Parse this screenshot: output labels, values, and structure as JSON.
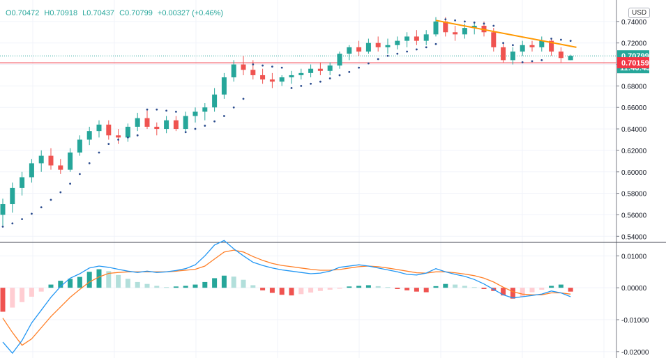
{
  "legend": {
    "open": "O0.70472",
    "high": "H0.70918",
    "low": "L0.70437",
    "close": "C0.70799",
    "change": "+0.00327 (+0.46%)"
  },
  "currency": "USD",
  "price_labels": {
    "last": "0.70799",
    "countdown": "11:46:43",
    "line": "0.70159"
  },
  "colors": {
    "up": "#26a69a",
    "down": "#ef5350",
    "sar": "#2a4b8d",
    "trend": "#ff9800",
    "macd": "#2196f3",
    "signal": "#ff7f27",
    "hline": "#f23645",
    "hist_up_strong": "#26a69a",
    "hist_up_weak": "#b2dfdb",
    "hist_dn_strong": "#ef5350",
    "hist_dn_weak": "#ffcdd2"
  },
  "chart_data": [
    {
      "type": "candlestick",
      "series_desc": "price with parabolic SAR",
      "y_ticks": [
        "0.54000",
        "0.56000",
        "0.58000",
        "0.60000",
        "0.62000",
        "0.64000",
        "0.66000",
        "0.68000",
        "0.70000",
        "0.72000",
        "0.74000"
      ],
      "ylim": [
        0.535,
        0.76
      ],
      "candles": [
        [
          0.56,
          0.575,
          0.55,
          0.57
        ],
        [
          0.57,
          0.59,
          0.562,
          0.585
        ],
        [
          0.585,
          0.6,
          0.578,
          0.595
        ],
        [
          0.595,
          0.612,
          0.59,
          0.608
        ],
        [
          0.608,
          0.62,
          0.6,
          0.615
        ],
        [
          0.615,
          0.622,
          0.602,
          0.606
        ],
        [
          0.606,
          0.612,
          0.598,
          0.602
        ],
        [
          0.602,
          0.622,
          0.6,
          0.618
        ],
        [
          0.618,
          0.634,
          0.615,
          0.63
        ],
        [
          0.63,
          0.642,
          0.625,
          0.638
        ],
        [
          0.638,
          0.648,
          0.632,
          0.644
        ],
        [
          0.644,
          0.648,
          0.63,
          0.634
        ],
        [
          0.634,
          0.64,
          0.626,
          0.632
        ],
        [
          0.632,
          0.645,
          0.628,
          0.642
        ],
        [
          0.642,
          0.655,
          0.638,
          0.65
        ],
        [
          0.65,
          0.658,
          0.64,
          0.642
        ],
        [
          0.642,
          0.646,
          0.634,
          0.64
        ],
        [
          0.64,
          0.652,
          0.636,
          0.648
        ],
        [
          0.648,
          0.652,
          0.638,
          0.64
        ],
        [
          0.64,
          0.656,
          0.638,
          0.652
        ],
        [
          0.652,
          0.66,
          0.646,
          0.656
        ],
        [
          0.656,
          0.664,
          0.648,
          0.66
        ],
        [
          0.66,
          0.678,
          0.656,
          0.672
        ],
        [
          0.672,
          0.692,
          0.668,
          0.688
        ],
        [
          0.688,
          0.704,
          0.684,
          0.7
        ],
        [
          0.7,
          0.708,
          0.69,
          0.695
        ],
        [
          0.695,
          0.704,
          0.686,
          0.69
        ],
        [
          0.69,
          0.696,
          0.682,
          0.686
        ],
        [
          0.686,
          0.692,
          0.678,
          0.684
        ],
        [
          0.684,
          0.69,
          0.68,
          0.688
        ],
        [
          0.688,
          0.694,
          0.682,
          0.69
        ],
        [
          0.69,
          0.696,
          0.686,
          0.692
        ],
        [
          0.692,
          0.7,
          0.688,
          0.696
        ],
        [
          0.696,
          0.702,
          0.69,
          0.694
        ],
        [
          0.694,
          0.702,
          0.69,
          0.699
        ],
        [
          0.699,
          0.712,
          0.696,
          0.71
        ],
        [
          0.71,
          0.718,
          0.704,
          0.716
        ],
        [
          0.716,
          0.722,
          0.708,
          0.712
        ],
        [
          0.712,
          0.724,
          0.71,
          0.72
        ],
        [
          0.72,
          0.726,
          0.712,
          0.716
        ],
        [
          0.716,
          0.724,
          0.71,
          0.718
        ],
        [
          0.718,
          0.726,
          0.714,
          0.722
        ],
        [
          0.722,
          0.73,
          0.716,
          0.726
        ],
        [
          0.726,
          0.732,
          0.718,
          0.722
        ],
        [
          0.722,
          0.732,
          0.718,
          0.728
        ],
        [
          0.728,
          0.744,
          0.726,
          0.74
        ],
        [
          0.74,
          0.744,
          0.726,
          0.73
        ],
        [
          0.73,
          0.736,
          0.722,
          0.728
        ],
        [
          0.728,
          0.738,
          0.724,
          0.734
        ],
        [
          0.734,
          0.74,
          0.728,
          0.736
        ],
        [
          0.736,
          0.74,
          0.726,
          0.73
        ],
        [
          0.73,
          0.734,
          0.712,
          0.716
        ],
        [
          0.716,
          0.72,
          0.702,
          0.704
        ],
        [
          0.704,
          0.716,
          0.7,
          0.712
        ],
        [
          0.712,
          0.722,
          0.708,
          0.718
        ],
        [
          0.718,
          0.722,
          0.712,
          0.716
        ],
        [
          0.716,
          0.726,
          0.712,
          0.722
        ],
        [
          0.722,
          0.724,
          0.708,
          0.712
        ],
        [
          0.712,
          0.716,
          0.702,
          0.706
        ],
        [
          0.704,
          0.709,
          0.704,
          0.708
        ]
      ],
      "sar": [
        0.549,
        0.552,
        0.556,
        0.561,
        0.567,
        0.574,
        0.581,
        0.589,
        0.598,
        0.608,
        0.618,
        0.626,
        0.63,
        0.632,
        0.634,
        0.658,
        0.658,
        0.657,
        0.656,
        0.637,
        0.64,
        0.643,
        0.647,
        0.652,
        0.66,
        0.668,
        0.7,
        0.699,
        0.698,
        0.697,
        0.678,
        0.68,
        0.682,
        0.684,
        0.687,
        0.69,
        0.693,
        0.697,
        0.701,
        0.705,
        0.708,
        0.71,
        0.712,
        0.714,
        0.716,
        0.719,
        0.742,
        0.741,
        0.74,
        0.739,
        0.738,
        0.736,
        0.72,
        0.718,
        0.702,
        0.703,
        0.704,
        0.724,
        0.723,
        0.722
      ],
      "trendline": {
        "from": [
          45,
          0.741
        ],
        "to": [
          59.6,
          0.716
        ]
      },
      "hline": 0.70159
    },
    {
      "type": "macd",
      "y_ticks": [
        "-0.02000",
        "-0.01000",
        "0.00000",
        "0.01000"
      ],
      "ylim": [
        -0.022,
        0.014
      ],
      "histogram": [
        -0.0075,
        -0.0062,
        -0.0045,
        -0.0028,
        -0.0012,
        0.001,
        0.0022,
        0.0028,
        0.0034,
        0.005,
        0.0058,
        0.0052,
        0.004,
        0.0028,
        0.0018,
        0.0012,
        0.0006,
        0.0002,
        0.0004,
        0.0006,
        0.001,
        0.0018,
        0.003,
        0.0038,
        0.0035,
        0.0025,
        0.0008,
        -0.0008,
        -0.0016,
        -0.0022,
        -0.0024,
        -0.002,
        -0.0015,
        -0.001,
        -0.0006,
        -0.0003,
        0.0004,
        0.0006,
        0.0008,
        0.0005,
        0.0002,
        -0.0004,
        -0.0008,
        -0.0012,
        -0.0014,
        0.0005,
        0.0012,
        0.001,
        0.0006,
        0.0002,
        -0.0004,
        -0.001,
        -0.0024,
        -0.0034,
        -0.0028,
        -0.0014,
        -0.0006,
        0.0006,
        0.001,
        -0.0012
      ],
      "macd": [
        -0.017,
        -0.0205,
        -0.0165,
        -0.011,
        -0.007,
        -0.003,
        0.0004,
        0.003,
        0.0044,
        0.0062,
        0.0068,
        0.0064,
        0.0058,
        0.0052,
        0.0048,
        0.0052,
        0.0048,
        0.005,
        0.0054,
        0.006,
        0.0072,
        0.01,
        0.0134,
        0.0148,
        0.0122,
        0.01,
        0.008,
        0.007,
        0.0062,
        0.0056,
        0.0052,
        0.0048,
        0.0044,
        0.0046,
        0.0052,
        0.0064,
        0.0068,
        0.0072,
        0.0068,
        0.0062,
        0.0056,
        0.005,
        0.0042,
        0.004,
        0.0046,
        0.006,
        0.005,
        0.0042,
        0.0036,
        0.0026,
        0.0012,
        -0.0005,
        -0.0022,
        -0.0032,
        -0.0028,
        -0.0024,
        -0.002,
        -0.001,
        -0.0016,
        -0.0028
      ],
      "signal": [
        -0.0095,
        -0.014,
        -0.018,
        -0.016,
        -0.0125,
        -0.009,
        -0.006,
        -0.003,
        -0.0005,
        0.0018,
        0.0034,
        0.0045,
        0.0048,
        0.005,
        0.005,
        0.005,
        0.005,
        0.005,
        0.0052,
        0.0055,
        0.0058,
        0.0068,
        0.009,
        0.0112,
        0.0118,
        0.0112,
        0.0098,
        0.0086,
        0.0076,
        0.007,
        0.0066,
        0.0062,
        0.0058,
        0.0055,
        0.0055,
        0.0057,
        0.0062,
        0.0066,
        0.0068,
        0.0066,
        0.0062,
        0.0057,
        0.0052,
        0.0047,
        0.0046,
        0.005,
        0.005,
        0.0047,
        0.0043,
        0.0038,
        0.003,
        0.0018,
        0.0002,
        -0.0012,
        -0.002,
        -0.0022,
        -0.0022,
        -0.0016,
        -0.0016,
        -0.002
      ]
    }
  ]
}
